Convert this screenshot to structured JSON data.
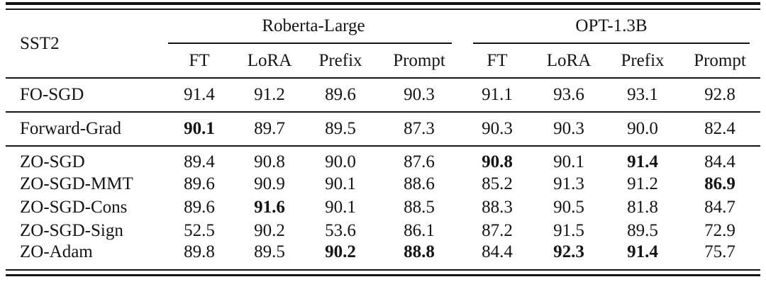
{
  "colors": {
    "ink": "#141414",
    "background": "#ffffff"
  },
  "table": {
    "dataset_label": "SST2",
    "groups": [
      {
        "label": "Roberta-Large",
        "columns": [
          "FT",
          "LoRA",
          "Prefix",
          "Prompt"
        ]
      },
      {
        "label": "OPT-1.3B",
        "columns": [
          "FT",
          "LoRA",
          "Prefix",
          "Prompt"
        ]
      }
    ],
    "rows": [
      {
        "method": "FO-SGD",
        "values": [
          "91.4",
          "91.2",
          "89.6",
          "90.3",
          "91.1",
          "93.6",
          "93.1",
          "92.8"
        ],
        "bold": [
          false,
          false,
          false,
          false,
          false,
          false,
          false,
          false
        ]
      },
      {
        "method": "Forward-Grad",
        "values": [
          "90.1",
          "89.7",
          "89.5",
          "87.3",
          "90.3",
          "90.3",
          "90.0",
          "82.4"
        ],
        "bold": [
          true,
          false,
          false,
          false,
          false,
          false,
          false,
          false
        ]
      },
      {
        "method": "ZO-SGD",
        "values": [
          "89.4",
          "90.8",
          "90.0",
          "87.6",
          "90.8",
          "90.1",
          "91.4",
          "84.4"
        ],
        "bold": [
          false,
          false,
          false,
          false,
          true,
          false,
          true,
          false
        ]
      },
      {
        "method": "ZO-SGD-MMT",
        "values": [
          "89.6",
          "90.9",
          "90.1",
          "88.6",
          "85.2",
          "91.3",
          "91.2",
          "86.9"
        ],
        "bold": [
          false,
          false,
          false,
          false,
          false,
          false,
          false,
          true
        ]
      },
      {
        "method": "ZO-SGD-Cons",
        "values": [
          "89.6",
          "91.6",
          "90.1",
          "88.5",
          "88.3",
          "90.5",
          "81.8",
          "84.7"
        ],
        "bold": [
          false,
          true,
          false,
          false,
          false,
          false,
          false,
          false
        ]
      },
      {
        "method": "ZO-SGD-Sign",
        "values": [
          "52.5",
          "90.2",
          "53.6",
          "86.1",
          "87.2",
          "91.5",
          "89.5",
          "72.9"
        ],
        "bold": [
          false,
          false,
          false,
          false,
          false,
          false,
          false,
          false
        ]
      },
      {
        "method": "ZO-Adam",
        "values": [
          "89.8",
          "89.5",
          "90.2",
          "88.8",
          "84.4",
          "92.3",
          "91.4",
          "75.7"
        ],
        "bold": [
          false,
          false,
          true,
          true,
          false,
          true,
          true,
          false
        ]
      }
    ]
  }
}
